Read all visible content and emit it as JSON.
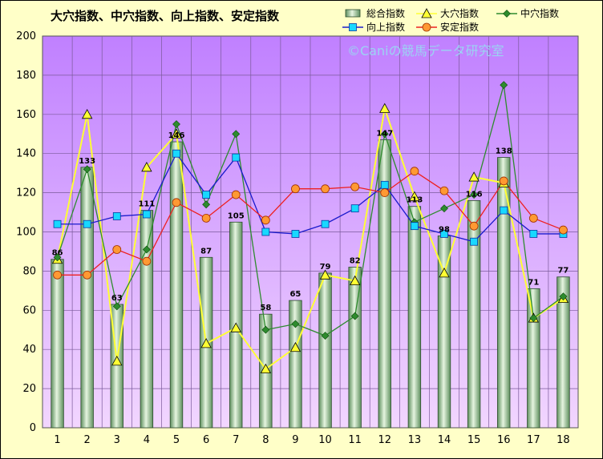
{
  "chart_data": {
    "type": "bar",
    "title": "大穴指数、中穴指数、向上指数、安定指数",
    "watermark": "©Caniの競馬データ研究室",
    "xlabel": "",
    "ylabel": "",
    "ylim": [
      0,
      200
    ],
    "yticks": [
      0,
      20,
      40,
      60,
      80,
      100,
      120,
      140,
      160,
      180,
      200
    ],
    "grid": true,
    "legend_position": "top-right",
    "categories": [
      "1",
      "2",
      "3",
      "4",
      "5",
      "6",
      "7",
      "8",
      "9",
      "10",
      "11",
      "12",
      "13",
      "14",
      "15",
      "16",
      "17",
      "18"
    ],
    "series": [
      {
        "name": "総合指数",
        "kind": "bar",
        "color": "#a8d8a8",
        "values": [
          86,
          133,
          63,
          111,
          146,
          87,
          105,
          58,
          65,
          79,
          82,
          147,
          113,
          98,
          116,
          138,
          71,
          77
        ]
      },
      {
        "name": "大穴指数",
        "kind": "line",
        "marker": "triangle",
        "color": "#ffff33",
        "values": [
          86,
          160,
          34,
          133,
          150,
          43,
          51,
          30,
          41,
          78,
          75,
          163,
          118,
          79,
          128,
          125,
          56,
          66
        ]
      },
      {
        "name": "中穴指数",
        "kind": "line",
        "marker": "diamond",
        "color": "#2e8b2e",
        "values": [
          87,
          132,
          62,
          91,
          155,
          114,
          150,
          50,
          53,
          47,
          57,
          150,
          105,
          112,
          119,
          175,
          56,
          67
        ]
      },
      {
        "name": "向上指数",
        "kind": "line",
        "marker": "square",
        "color": "#1a1acc",
        "values": [
          104,
          104,
          108,
          109,
          140,
          119,
          138,
          100,
          99,
          104,
          112,
          124,
          103,
          99,
          95,
          111,
          99,
          99
        ]
      },
      {
        "name": "安定指数",
        "kind": "line",
        "marker": "circle",
        "color": "#ee2020",
        "values": [
          78,
          78,
          91,
          85,
          115,
          107,
          119,
          106,
          122,
          122,
          123,
          120,
          131,
          121,
          103,
          126,
          107,
          101
        ]
      }
    ]
  }
}
